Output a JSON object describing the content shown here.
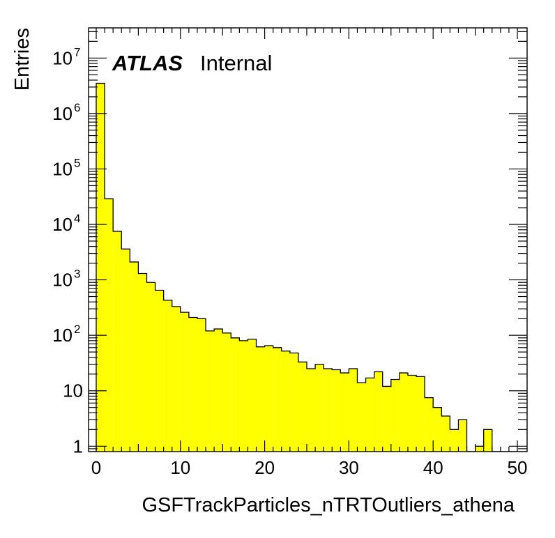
{
  "chart_data": {
    "type": "bar",
    "histogram": true,
    "xlabel": "GSFTrackParticles_nTRTOutliers_athena",
    "ylabel": "Entries",
    "xlim": [
      0,
      50
    ],
    "ylim": [
      0.8,
      35000000
    ],
    "yscale": "log",
    "grid": false,
    "legend": "none",
    "fill_color": "#ffff00",
    "line_color": "#000000",
    "x_ticks": [
      "0",
      "10",
      "20",
      "30",
      "40",
      "50"
    ],
    "y_ticks": [
      {
        "value": 1,
        "mantissa": "1",
        "exponent": ""
      },
      {
        "value": 10,
        "mantissa": "10",
        "exponent": ""
      },
      {
        "value": 100,
        "mantissa": "10",
        "exponent": "2"
      },
      {
        "value": 1000,
        "mantissa": "10",
        "exponent": "3"
      },
      {
        "value": 10000,
        "mantissa": "10",
        "exponent": "4"
      },
      {
        "value": 100000,
        "mantissa": "10",
        "exponent": "5"
      },
      {
        "value": 1000000,
        "mantissa": "10",
        "exponent": "6"
      },
      {
        "value": 10000000,
        "mantissa": "10",
        "exponent": "7"
      }
    ],
    "bin_edges": [
      0,
      1,
      2,
      3,
      4,
      5,
      6,
      7,
      8,
      9,
      10,
      11,
      12,
      13,
      14,
      15,
      16,
      17,
      18,
      19,
      20,
      21,
      22,
      23,
      24,
      25,
      26,
      27,
      28,
      29,
      30,
      31,
      32,
      33,
      34,
      35,
      36,
      37,
      38,
      39,
      40,
      41,
      42,
      43,
      44,
      45,
      46,
      47,
      48,
      49,
      50
    ],
    "values": [
      3500000,
      29000,
      7500,
      3600,
      2100,
      1300,
      900,
      650,
      430,
      330,
      260,
      210,
      200,
      120,
      130,
      110,
      90,
      80,
      85,
      62,
      65,
      60,
      52,
      48,
      33,
      25,
      30,
      25,
      24,
      21,
      25,
      14,
      17,
      22,
      12,
      16,
      21,
      19,
      18,
      7.5,
      5,
      3.5,
      2,
      3,
      0,
      1,
      2,
      0,
      0,
      0
    ],
    "annotations": [
      {
        "label": "ATLAS",
        "style": "bold-italic"
      },
      {
        "label": "Internal",
        "style": "normal"
      }
    ]
  }
}
